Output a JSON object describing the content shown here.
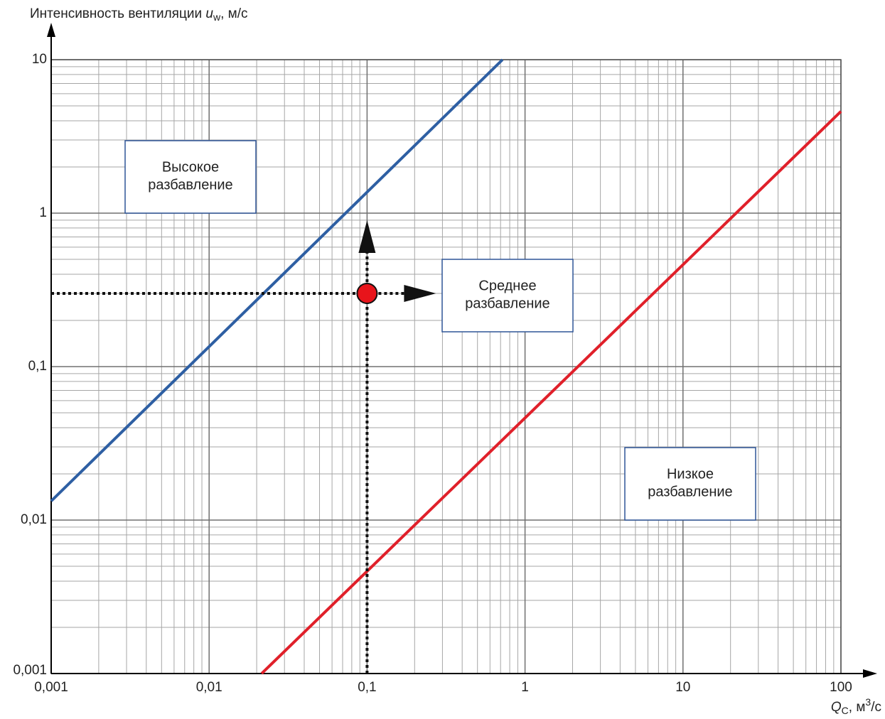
{
  "chart_data": {
    "type": "line",
    "x_scale": "log",
    "y_scale": "log",
    "grid": true,
    "minor_grid": true,
    "y_label": {
      "text": "Интенсивность вентиляции ",
      "symbol": "u",
      "subscript": "w",
      "unit": ", м/с"
    },
    "x_label": {
      "symbol": "Q",
      "subscript": "C",
      "unit": ", м",
      "superscript": "3",
      "unit_end": "/с"
    },
    "xlim": [
      0.001,
      100
    ],
    "xticks": [
      {
        "value": 0.001,
        "label": "0,001"
      },
      {
        "value": 0.01,
        "label": "0,01"
      },
      {
        "value": 0.1,
        "label": "0,1"
      },
      1,
      10,
      100
    ],
    "ylim": [
      0.001,
      10
    ],
    "yticks": [
      {
        "value": 0.001,
        "label": "0,001"
      },
      {
        "value": 0.01,
        "label": "0,01"
      },
      {
        "value": 0.1,
        "label": "0,1"
      },
      1,
      10
    ],
    "series": [
      {
        "color": "#2e5fa3",
        "x": [
          0.001,
          0.72
        ],
        "values": [
          0.0133,
          10
        ]
      },
      {
        "color": "#e0202a",
        "x": [
          0.0215,
          100
        ],
        "values": [
          0.001,
          4.6
        ]
      }
    ],
    "marker": {
      "x": 0.1,
      "y": 0.3,
      "color": "#e8141b"
    },
    "annotations": [
      {
        "lines": [
          "Высокое",
          "разбавление"
        ]
      },
      {
        "lines": [
          "Среднее",
          "разбавление"
        ]
      },
      {
        "lines": [
          "Низкое",
          "разбавление"
        ]
      }
    ]
  }
}
